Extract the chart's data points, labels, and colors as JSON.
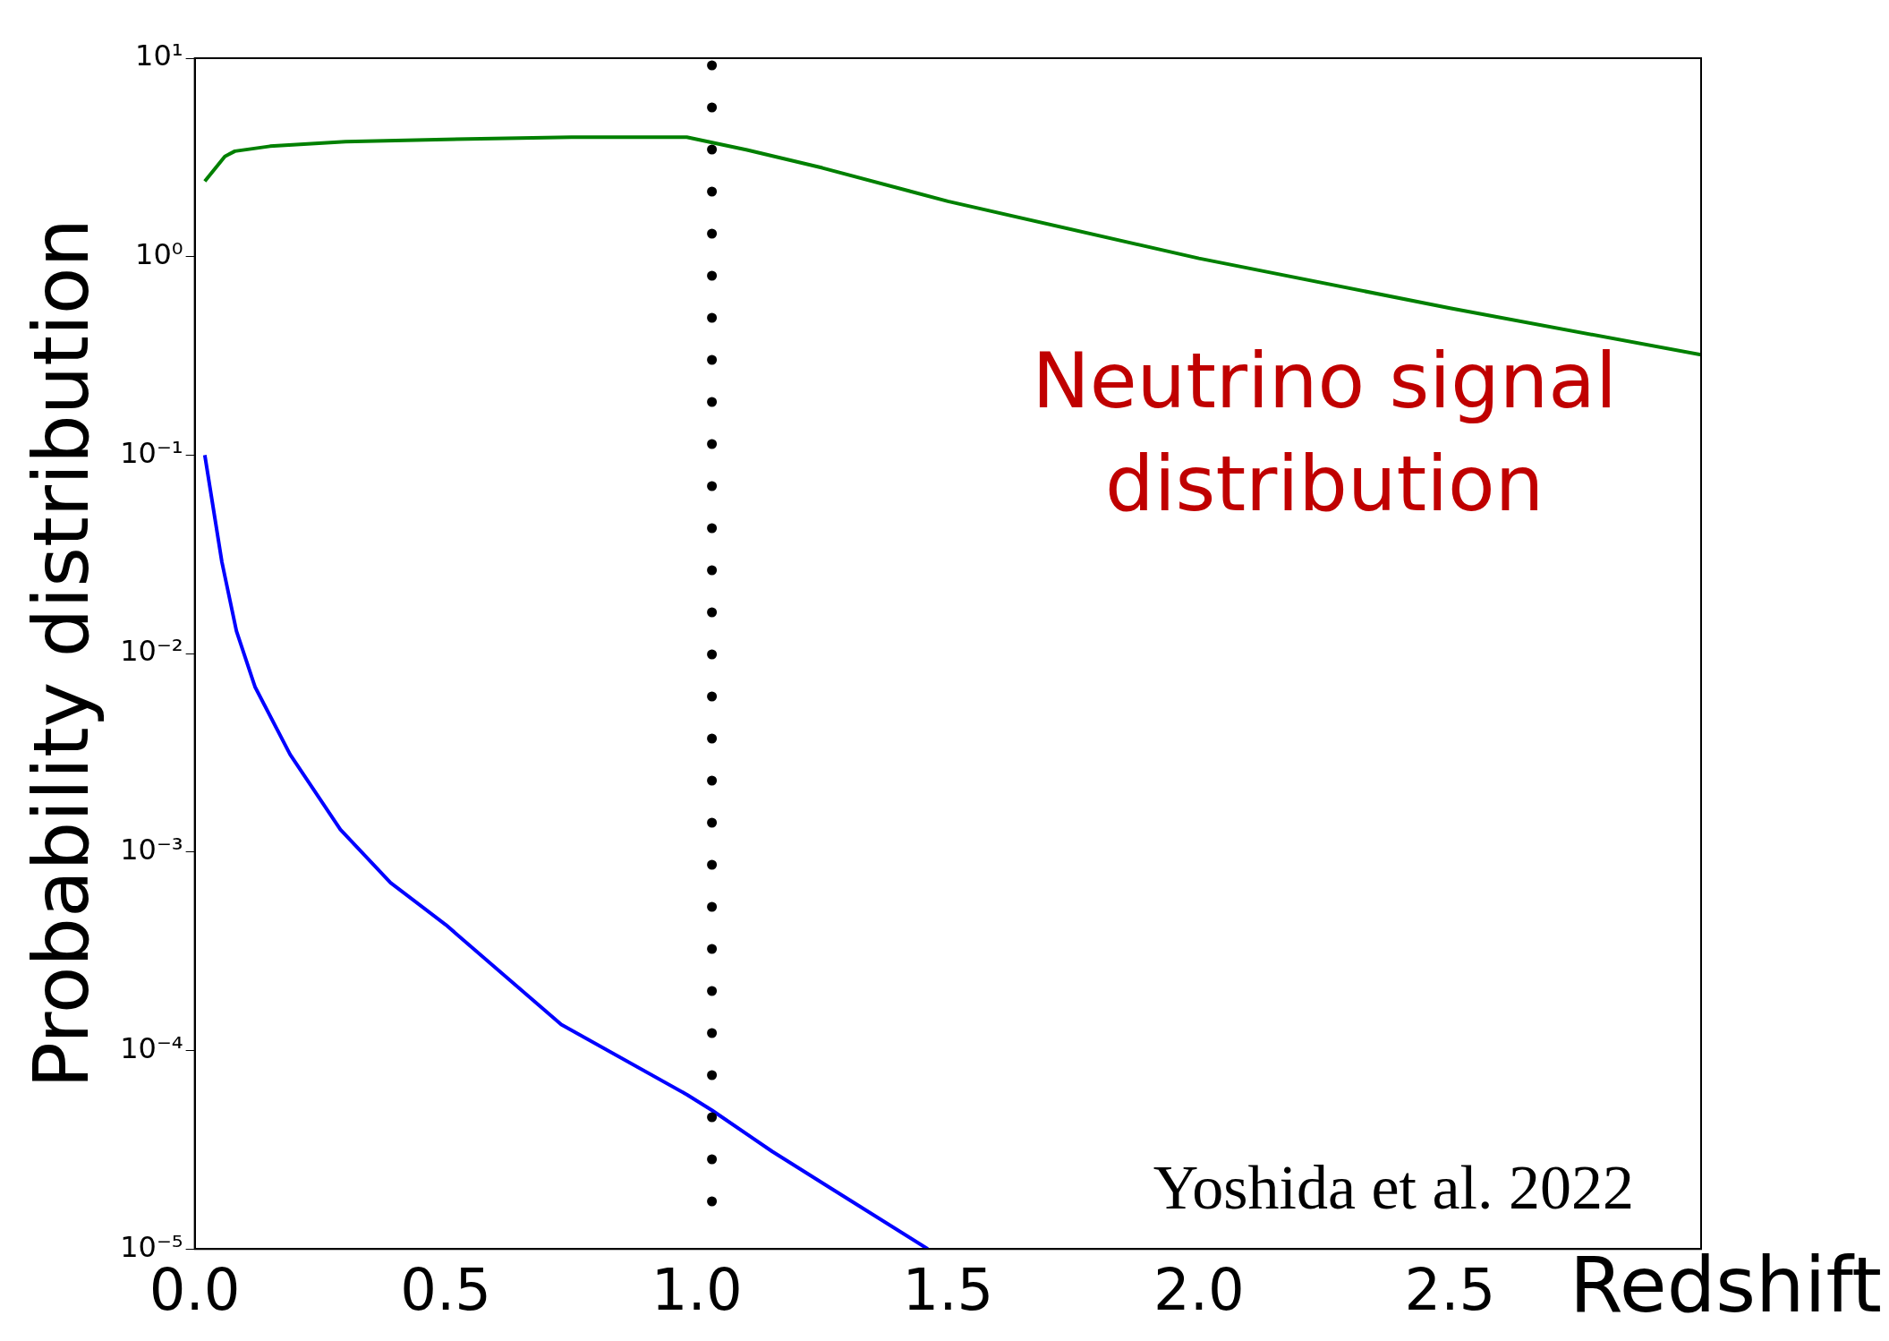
{
  "chart_data": {
    "type": "line",
    "xlabel": "Redshift",
    "ylabel": "Probability distribution",
    "xlim": [
      0,
      3
    ],
    "xticks": [
      {
        "value": 0,
        "label": "0.0"
      },
      0.5,
      {
        "value": 1,
        "label": "1.0"
      },
      1.5,
      {
        "value": 2,
        "label": "2.0"
      },
      2.5,
      {
        "value": 3,
        "label": null
      }
    ],
    "ylim": [
      1e-05,
      10
    ],
    "yticks": [
      {
        "value": 1e-05,
        "label": "10⁻⁵"
      },
      {
        "value": 0.0001,
        "label": "10⁻⁴"
      },
      {
        "value": 0.001,
        "label": "10⁻³"
      },
      {
        "value": 0.01,
        "label": "10⁻²"
      },
      {
        "value": 0.1,
        "label": "10⁻¹"
      },
      {
        "value": 1,
        "label": "10⁰"
      },
      {
        "value": 10,
        "label": "10¹"
      }
    ],
    "log": "y",
    "grid": false,
    "legend": false,
    "marker": "none",
    "line_style": "solid",
    "series": [
      {
        "color": "#008000",
        "x": [
          0.02,
          0.06,
          0.08,
          0.15,
          0.3,
          0.5,
          0.75,
          0.98,
          1.1,
          1.25,
          1.5,
          2.0,
          2.5,
          3.0
        ],
        "values": [
          2.4,
          3.2,
          3.4,
          3.6,
          3.8,
          3.9,
          4.0,
          4.0,
          3.45,
          2.8,
          1.9,
          0.98,
          0.55,
          0.32
        ]
      },
      {
        "color": "#0000ff",
        "x": [
          0.02,
          0.054,
          0.083,
          0.12,
          0.19,
          0.29,
          0.39,
          0.5,
          0.73,
          0.98,
          1.03,
          1.15,
          1.27,
          1.46
        ],
        "values": [
          0.1,
          0.029,
          0.013,
          0.0068,
          0.0031,
          0.0013,
          0.0007,
          0.00043,
          0.000135,
          6e-05,
          5e-05,
          3.1e-05,
          2e-05,
          1e-05
        ]
      }
    ],
    "ref_lines": [
      {
        "axis": "x",
        "value": 1.03,
        "color": "#000000",
        "line_style": "dotted"
      }
    ],
    "annotations": [
      "Neutrino signal distribution",
      "Yoshida et al. 2022"
    ]
  }
}
